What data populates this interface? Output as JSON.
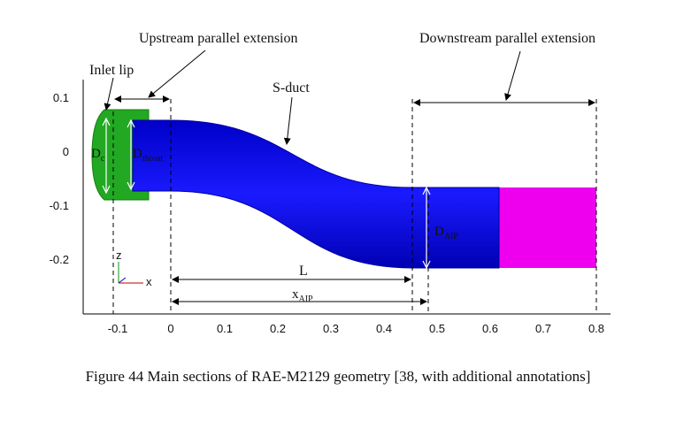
{
  "caption": "Figure 44 Main sections of RAE-M2129 geometry [38, with additional annotations]",
  "labels": {
    "upstream": "Upstream parallel extension",
    "downstream": "Downstream parallel extension",
    "inlet_lip": "Inlet lip",
    "s_duct": "S-duct",
    "L": "L",
    "x_aip_main": "x",
    "x_aip_sub": "AIP",
    "d_c_main": "D",
    "d_c_sub": "c",
    "d_throat_main": "D",
    "d_throat_sub": "throat",
    "d_aip_main": "D",
    "d_aip_sub": "AIP"
  },
  "axis": {
    "x_ticks": [
      "-0.1",
      "0",
      "0.1",
      "0.2",
      "0.3",
      "0.4",
      "0.5",
      "0.6",
      "0.7",
      "0.8"
    ],
    "y_ticks": [
      "0.1",
      "0",
      "-0.1",
      "-0.2"
    ],
    "triad": {
      "z": "z",
      "x": "x"
    }
  },
  "colors": {
    "inlet_lip": "#22a822",
    "s_duct": "#1010f0",
    "downstream_extension": "#ee00ee",
    "annotation": "#000000"
  }
}
